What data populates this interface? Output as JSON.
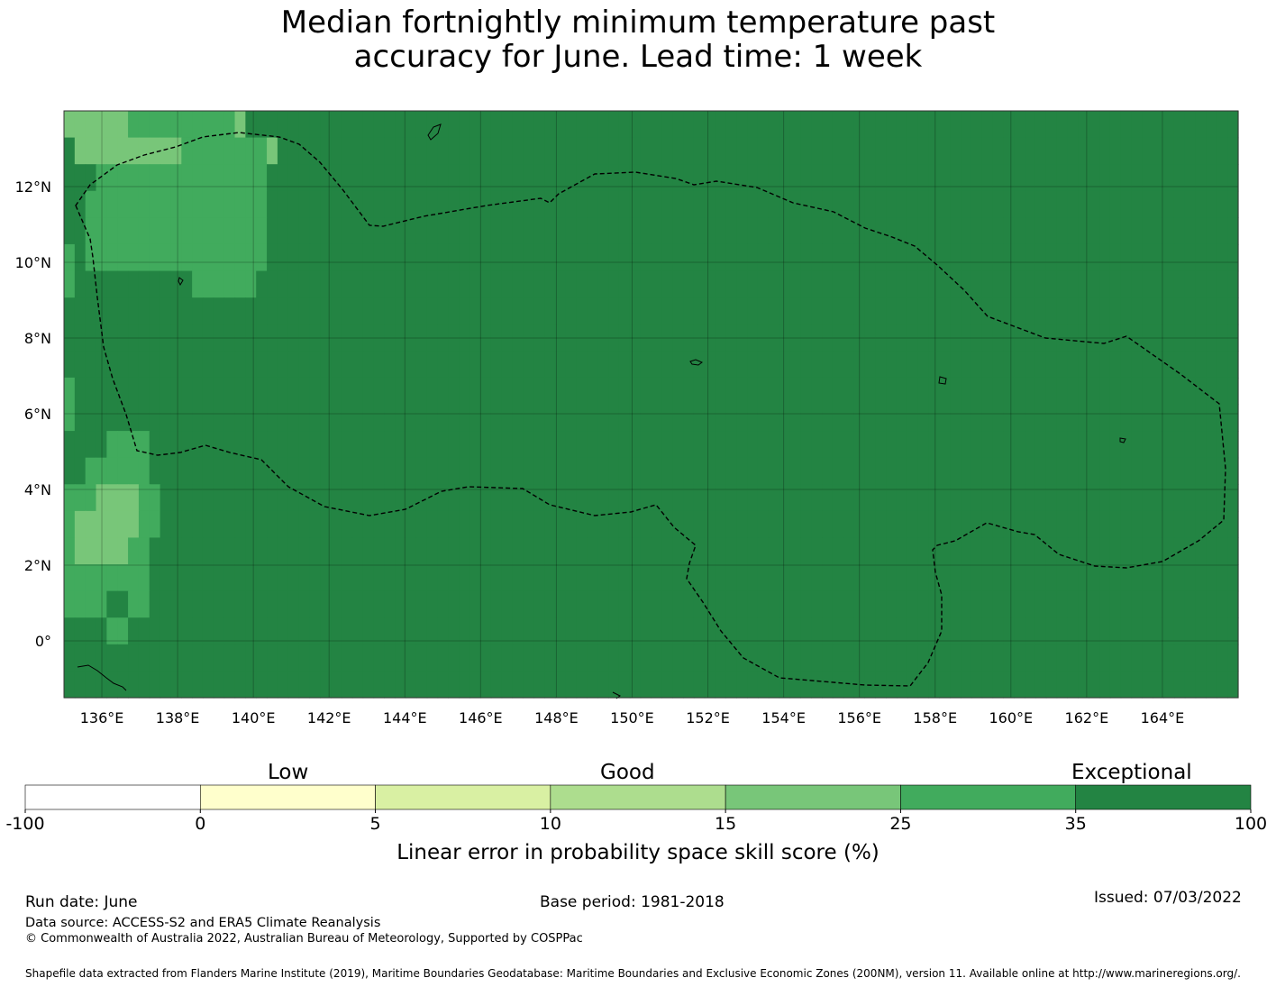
{
  "title": {
    "line1": "Median fortnightly minimum temperature past",
    "line2": "accuracy for June. Lead time: 1 week"
  },
  "map": {
    "lon_range": [
      135,
      166
    ],
    "lat_range": [
      -1.5,
      14
    ],
    "lon_ticks": [
      "136°E",
      "138°E",
      "140°E",
      "142°E",
      "144°E",
      "146°E",
      "148°E",
      "150°E",
      "152°E",
      "154°E",
      "156°E",
      "158°E",
      "160°E",
      "162°E",
      "164°E"
    ],
    "lat_ticks": [
      "0°",
      "2°N",
      "4°N",
      "6°N",
      "8°N",
      "10°N",
      "12°N"
    ],
    "colors": {
      "1": "#ffffcc",
      "2": "#d9f0a3",
      "3": "#addd8e",
      "4": "#78c679",
      "5": "#41ab5d",
      "6": "#238443"
    },
    "skill_rows": [
      "44444455555555554666666666666666666666666666666666666666666666666666666666666666666666666666666666666666666666",
      "64444444444555555554666666666666666666666666666666666666666666666666666666666666666666666666666666666666666666",
      "66655555555555555556666666666666666666666666666666666666666666666666666666666666666666666666666666666666666666",
      "66555555555555555556666666666666666666666666666666666666666666666666666666666666666666666666666666666666666666",
      "66555555555555555556666666666666666666666666666666666666666666666666666666666666666666666666666666666666666666",
      "56555555555555555556666666666666666666666666666666666666666666666666666666666666666666666666666666666666666666",
      "56666666666655555566666666666666666666666666666666666666666666666666666666666666666666666666666666666666666666",
      "66666666666666666666666666666666666666666666666666666666666666666666666666666666666666666666666666666666666666",
      "66666666666666666666666666666666666666666666666666666666666666666666666666666666666666666666666666666666666666",
      "66666666666666666666666666666666666666666666666666666666666666666666666666666666666666666666666666666666666666",
      "56666666666666666666666666666666666666666666666666666666666666666666666666666666666666666666666666666666666666",
      "56666666666666666666666666666666666666666666666666666666666666666666666666666666666666666666666666666666666666",
      "66665555666666666666666666666666666666666666666666666666666666666666666666666666666666666666666666666666666666",
      "66555555666666666666666666666666666666666666666666666666666666666666666666666666666666666666666666666666666666",
      "55544445566666666666666666666666666666666666666666666666666666666666666666666666666666666666666666666666666666",
      "54444445566666666666666666666666666666666666666666666666666666666666666666666666666666666666666666666666666666",
      "54444455666666666666666666666666666666666666666666666666666666666666666666666666666666666666666666666666666666",
      "55555555666666666666666666666666666666666666666666666666666666666666666666666666666666666666666666666666666666",
      "55556655666666666666666666666666666666666666666666666666666666666666666666666666666666666666666666666666666666",
      "66665566666666666666666666666666666666666666666666666666666666666666666666666666666666666666666666666666666666",
      "66666666666666666666666666666666666666666666666666666666666666666666666666666666666666666666666666666666666666",
      "66666666666666666666666666666666666666666666666666666666666666666666666666666666666666666666666666666666666666"
    ]
  },
  "colorbar": {
    "category_labels": [
      "Low",
      "Good",
      "Exceptional"
    ],
    "boundaries": [
      "-100",
      "0",
      "5",
      "10",
      "15",
      "25",
      "35",
      "100"
    ],
    "segment_colors": [
      "#ffffff",
      "#ffffcc",
      "#d9f0a3",
      "#addd8e",
      "#78c679",
      "#41ab5d",
      "#238443"
    ],
    "label": "Linear error in probability space skill score (%)"
  },
  "footer": {
    "run_date": "Run date: June",
    "base_period": "Base period: 1981-2018",
    "issued": "Issued: 07/03/2022",
    "data_source": "Data source: ACCESS-S2 and ERA5 Climate Reanalysis",
    "copyright": "© Commonwealth of Australia 2022, Australian Bureau of Meteorology, Supported by COSPPac",
    "shapefile": "Shapefile data extracted from Flanders Marine Institute (2019), Maritime Boundaries Geodatabase: Maritime Boundaries and Exclusive Economic Zones (200NM), version 11. Available online at http://www.marineregions.org/."
  }
}
